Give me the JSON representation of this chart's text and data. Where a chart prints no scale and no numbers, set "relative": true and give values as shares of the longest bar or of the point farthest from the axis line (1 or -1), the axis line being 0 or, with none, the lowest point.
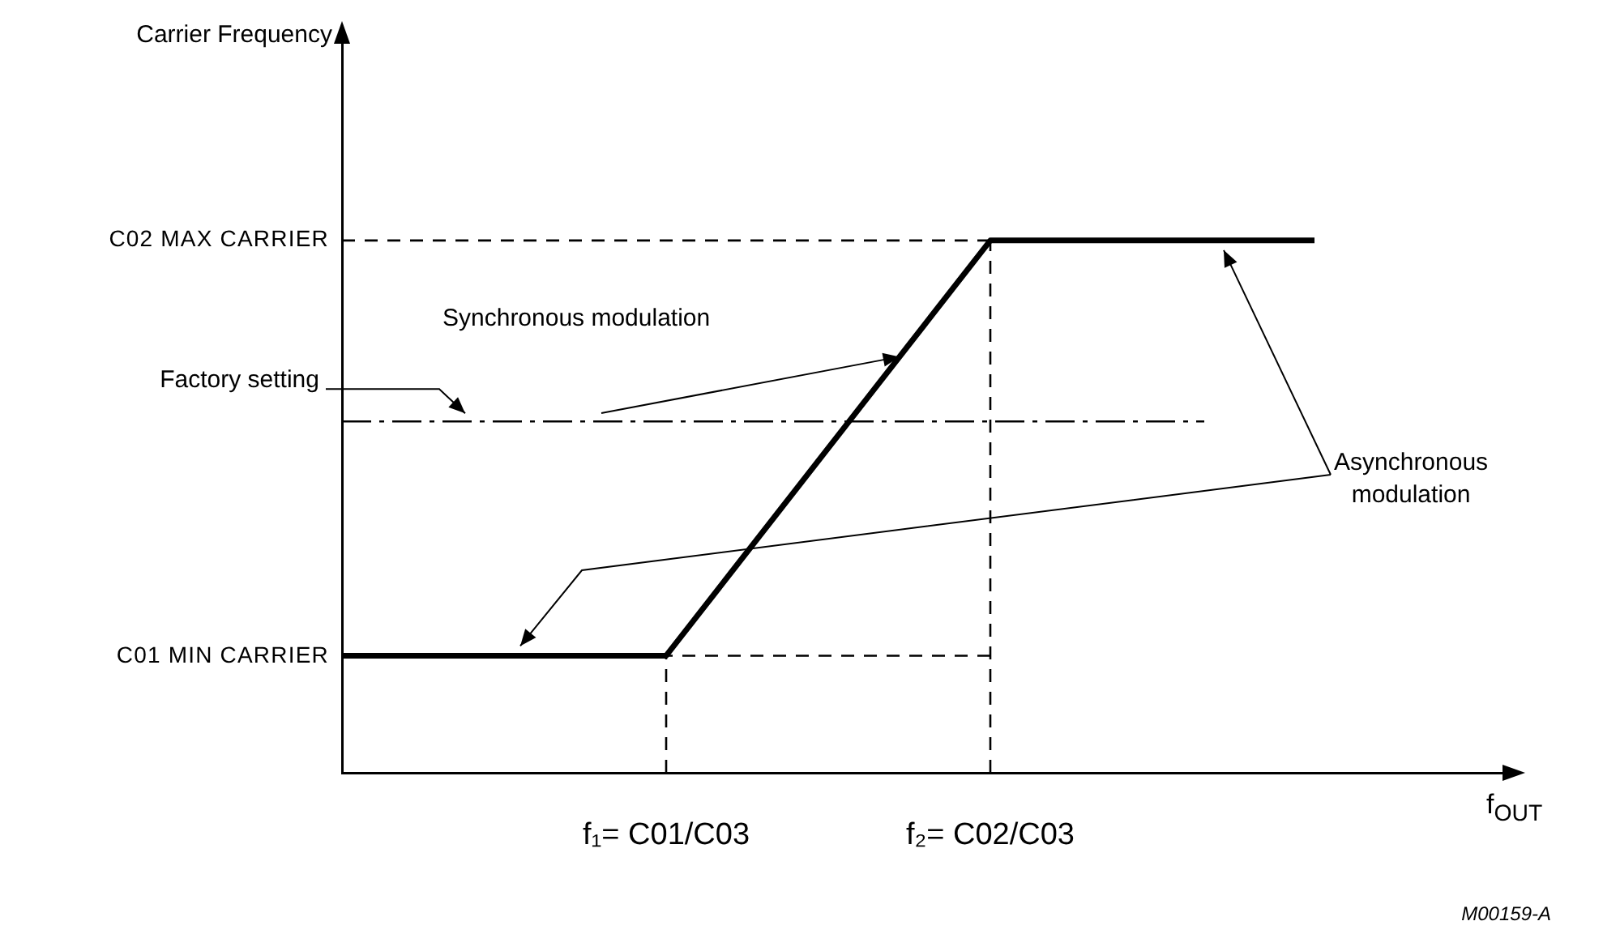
{
  "chart_data": {
    "type": "line",
    "relative": true,
    "xlabel": "f$_{OUT}$",
    "categories": [
      null,
      "f₁= C01/C03",
      "f₂= C02/C03",
      null
    ],
    "series": [
      {
        "color": "#000000",
        "values": [
          0.22,
          0.22,
          1,
          1
        ]
      }
    ],
    "ref_lines": [
      {
        "axis": "y",
        "value": 1,
        "label": "C02 MAX CARRIER",
        "line_style": "dashed",
        "color": "#000000"
      },
      {
        "axis": "y",
        "value": 0.22,
        "label": "C01 MIN CARRIER",
        "line_style": "dashed",
        "color": "#000000"
      },
      {
        "axis": "y",
        "value": 0.66,
        "label": "Factory setting",
        "line_style": "dashdot",
        "color": "#000000"
      },
      {
        "axis": "x",
        "value": "f₁= C01/C03",
        "line_style": "dashed",
        "color": "#000000"
      },
      {
        "axis": "x",
        "value": "f₂= C02/C03",
        "line_style": "dashed",
        "color": "#000000"
      }
    ],
    "annotations": [
      "Synchronous modulation",
      "Asynchronous modulation",
      "M00159-A",
      "Carrier Frequency"
    ]
  }
}
